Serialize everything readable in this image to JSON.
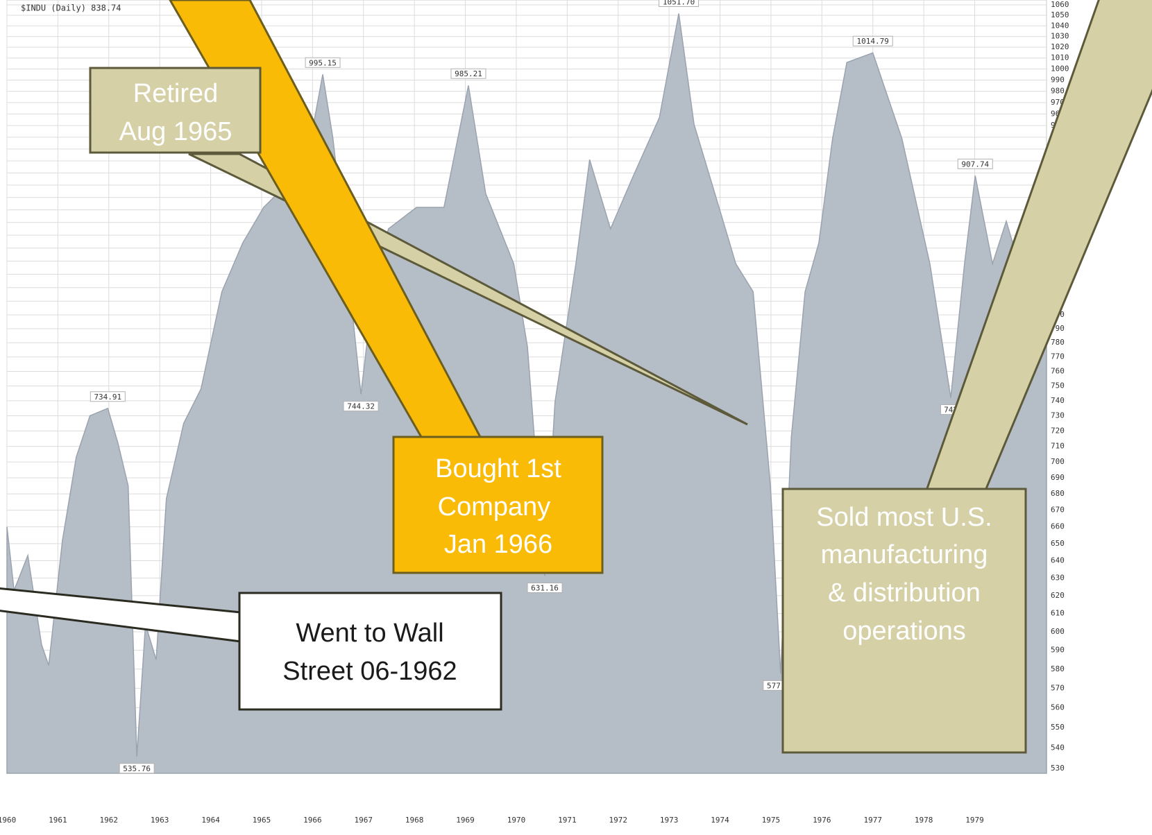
{
  "chart_data": {
    "type": "area",
    "title": "$INDU (Daily) 838.74",
    "log_scale": true,
    "grid": true,
    "color": "#b5bdc7",
    "line_color": "#9aa3ae",
    "x": [
      1960.0,
      1960.14,
      1960.41,
      1960.68,
      1960.82,
      1961.09,
      1961.36,
      1961.63,
      1961.98,
      1962.18,
      1962.38,
      1962.55,
      1962.72,
      1962.93,
      1963.13,
      1963.47,
      1963.81,
      1964.22,
      1964.63,
      1965.04,
      1965.31,
      1965.72,
      1966.2,
      1966.4,
      1966.68,
      1966.95,
      1967.22,
      1967.49,
      1968.04,
      1968.58,
      1969.06,
      1969.4,
      1969.95,
      1970.22,
      1970.56,
      1970.76,
      1971.17,
      1971.44,
      1971.85,
      1972.26,
      1972.81,
      1973.19,
      1973.49,
      1973.9,
      1974.31,
      1974.65,
      1974.99,
      1975.19,
      1975.4,
      1975.67,
      1975.94,
      1976.21,
      1976.49,
      1977.0,
      1977.57,
      1978.12,
      1978.53,
      1978.8,
      1979.01,
      1979.35,
      1979.62,
      1980.03,
      1980.41
    ],
    "values": [
      660,
      623,
      643,
      593,
      582,
      652,
      703,
      730,
      734.91,
      712,
      685,
      535.76,
      604,
      585,
      677,
      725,
      748,
      817,
      854,
      882,
      893,
      882,
      995.15,
      939,
      838,
      744.32,
      828,
      865,
      882,
      882,
      985.21,
      893,
      838,
      777,
      631.16,
      739,
      838,
      921,
      865,
      904,
      957,
      1051.7,
      951,
      893,
      838,
      817,
      685,
      577.6,
      716,
      817,
      854,
      939,
      1006,
      1014.79,
      939,
      838,
      742,
      838,
      907.74,
      838,
      871,
      817,
      812
    ],
    "value_labels": [
      null,
      null,
      null,
      null,
      null,
      null,
      null,
      null,
      "734.91",
      null,
      null,
      "535.76",
      null,
      null,
      null,
      null,
      null,
      null,
      null,
      null,
      null,
      null,
      "995.15",
      null,
      null,
      "744.32",
      null,
      null,
      null,
      null,
      "985.21",
      null,
      null,
      null,
      "631.16",
      null,
      null,
      null,
      null,
      null,
      null,
      "1051.70",
      null,
      null,
      null,
      null,
      null,
      "577.60",
      null,
      null,
      null,
      null,
      null,
      "1014.79",
      null,
      null,
      "742",
      null,
      "907.74",
      null,
      null,
      null,
      null
    ],
    "xlim": [
      1960,
      1980.41
    ],
    "xticks": [
      1960,
      1961,
      1962,
      1963,
      1964,
      1965,
      1966,
      1967,
      1968,
      1969,
      1970,
      1971,
      1972,
      1973,
      1974,
      1975,
      1976,
      1977,
      1978,
      1979
    ],
    "ylim": [
      530,
      1060
    ],
    "yticks": [
      530,
      540,
      550,
      560,
      570,
      580,
      590,
      600,
      610,
      620,
      630,
      640,
      650,
      660,
      670,
      680,
      690,
      700,
      710,
      720,
      730,
      740,
      750,
      760,
      770,
      780,
      790,
      800,
      810,
      820,
      830,
      840,
      850,
      860,
      870,
      880,
      890,
      900,
      910,
      920,
      930,
      940,
      950,
      960,
      970,
      980,
      990,
      1000,
      1010,
      1020,
      1030,
      1040,
      1050,
      1060
    ],
    "callouts": [
      {
        "lines": [
          "Retired",
          "Aug 1965"
        ]
      },
      {
        "lines": [
          "Bought 1st",
          "Company",
          " Jan 1966"
        ]
      },
      {
        "lines": [
          "Went to Wall",
          "Street 06-1962"
        ]
      },
      {
        "lines": [
          "Sold most U.S.",
          "manufacturing",
          "& distribution",
          "operations"
        ]
      }
    ]
  }
}
